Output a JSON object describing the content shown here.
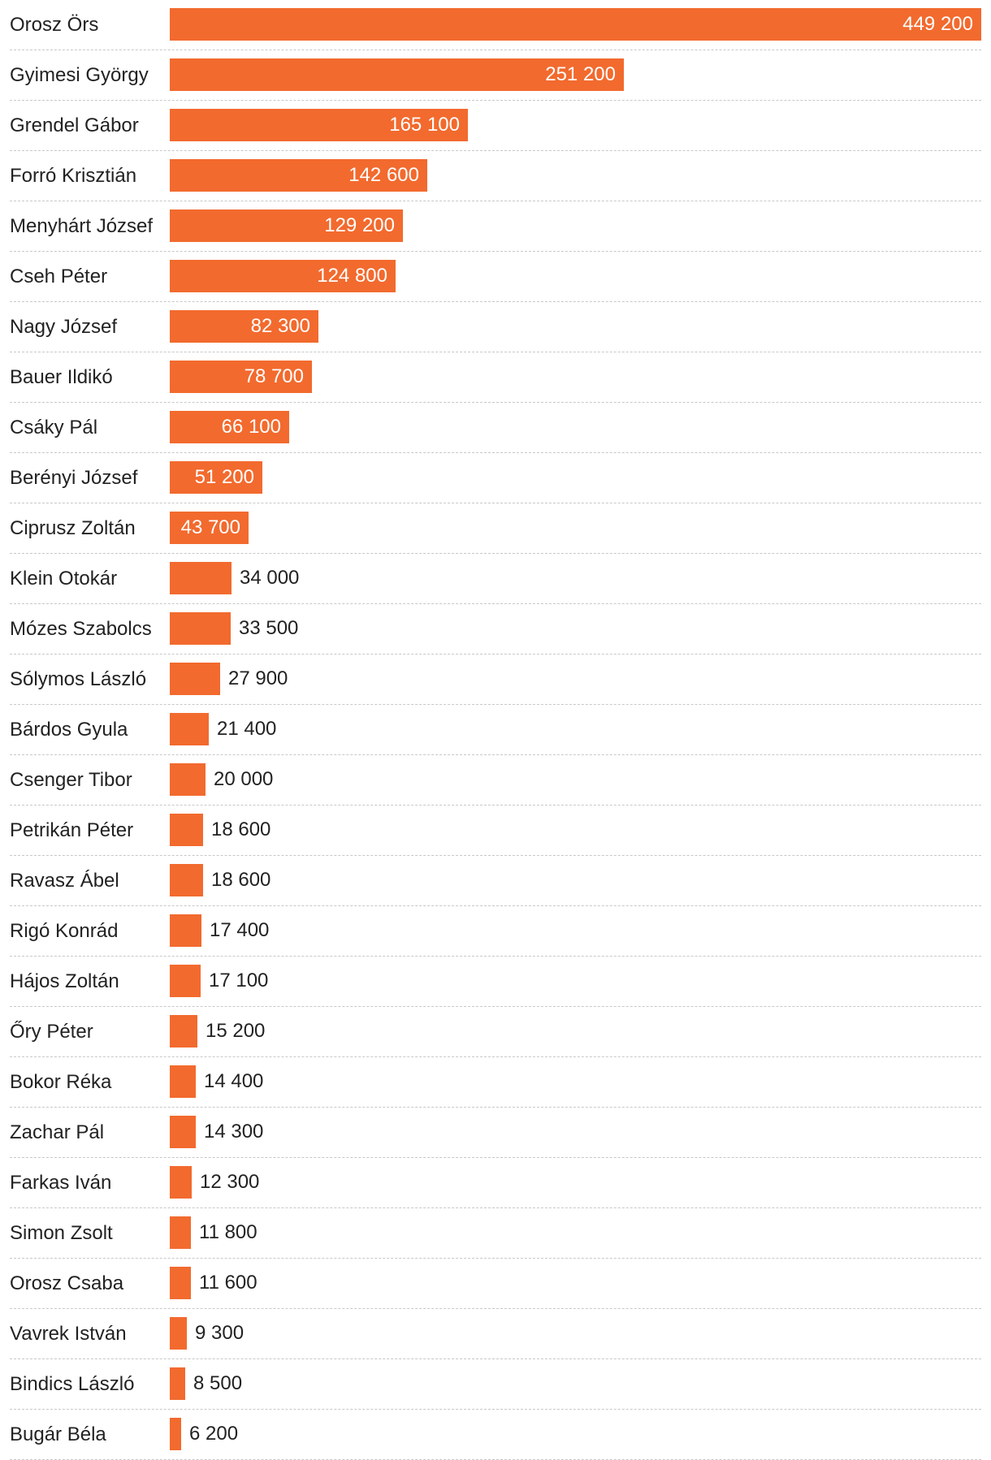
{
  "colors": {
    "bar": "#f26a2e",
    "label_text": "#222222",
    "inside_value_text": "#ffffff",
    "separator": "#c8c8c8"
  },
  "chart_data": {
    "type": "bar",
    "orientation": "horizontal",
    "title": "",
    "xlabel": "",
    "ylabel": "",
    "xlim": [
      0,
      449200
    ],
    "grid": false,
    "legend": "none",
    "categories": [
      "Orosz Örs",
      "Gyimesi György",
      "Grendel Gábor",
      "Forró Krisztián",
      "Menyhárt József",
      "Cseh Péter",
      "Nagy József",
      "Bauer Ildikó",
      "Csáky Pál",
      "Berényi József",
      "Ciprusz Zoltán",
      "Klein Otokár",
      "Mózes Szabolcs",
      "Sólymos László",
      "Bárdos Gyula",
      "Csenger Tibor",
      "Petrikán Péter",
      "Ravasz Ábel",
      "Rigó Konrád",
      "Hájos Zoltán",
      "Őry Péter",
      "Bokor Réka",
      "Zachar Pál",
      "Farkas Iván",
      "Simon Zsolt",
      "Orosz Csaba",
      "Vavrek István",
      "Bindics László",
      "Bugár Béla"
    ],
    "values": [
      449200,
      251200,
      165100,
      142600,
      129200,
      124800,
      82300,
      78700,
      66100,
      51200,
      43700,
      34000,
      33500,
      27900,
      21400,
      20000,
      18600,
      18600,
      17400,
      17100,
      15200,
      14400,
      14300,
      12300,
      11800,
      11600,
      9300,
      8500,
      6200
    ],
    "value_labels": [
      "449 200",
      "251 200",
      "165 100",
      "142 600",
      "129 200",
      "124 800",
      "82 300",
      "78 700",
      "66 100",
      "51 200",
      "43 700",
      "34 000",
      "33 500",
      "27 900",
      "21 400",
      "20 000",
      "18 600",
      "18 600",
      "17 400",
      "17 100",
      "15 200",
      "14 400",
      "14 300",
      "12 300",
      "11 800",
      "11 600",
      "9 300",
      "8 500",
      "6 200"
    ]
  }
}
